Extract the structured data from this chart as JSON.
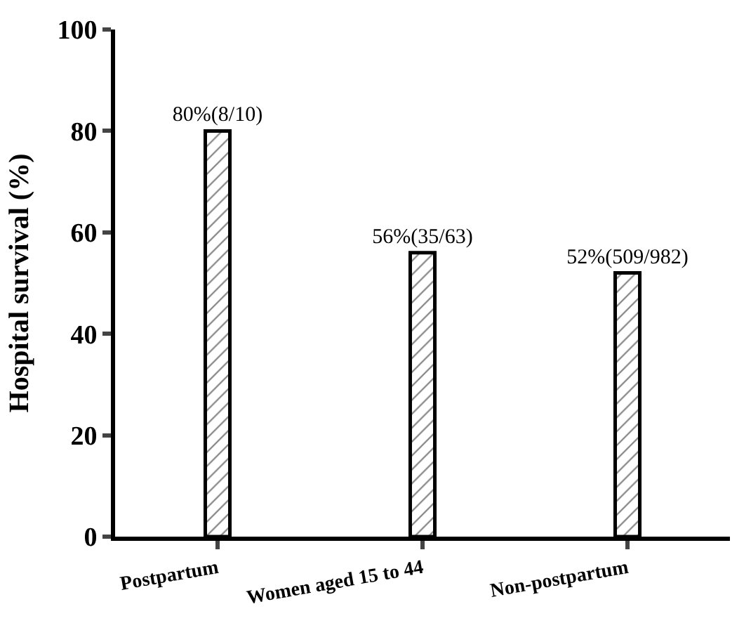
{
  "chart_data": {
    "type": "bar",
    "ylabel": "Hospital survival (%)",
    "categories": [
      "Postpartum",
      "Women aged 15 to 44",
      "Non-postpartum"
    ],
    "values": [
      80,
      56,
      52
    ],
    "color": "#000000",
    "value_labels": [
      "80%(8/10)",
      "56%(35/63)",
      "52%(509/982)"
    ],
    "ylim": [
      0,
      100
    ],
    "yticks": [
      0,
      20,
      40,
      60,
      80,
      100
    ]
  }
}
